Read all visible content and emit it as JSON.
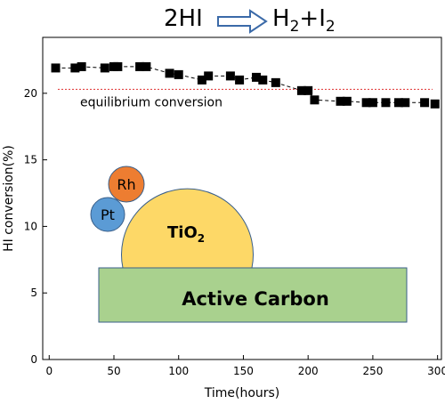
{
  "reaction": {
    "reactant": "2HI",
    "product_h": "H",
    "product_h_sub": "2",
    "plus": "+",
    "product_i": "I",
    "product_i_sub": "2"
  },
  "colors": {
    "tio2": "#fdd867",
    "pt": "#5b9bd5",
    "rh": "#ed7d31",
    "carbon": "#a9d18e",
    "outline": "#3a5f8a",
    "equilibrium_line": "#e03030",
    "marker": "#000000"
  },
  "illustration": {
    "rh_label": "Rh",
    "pt_label": "Pt",
    "tio2_label": "TiO",
    "tio2_sub": "2",
    "carbon_label": "Active Carbon"
  },
  "chart_data": {
    "type": "line",
    "title": "",
    "xlabel": "Time(hours)",
    "ylabel": "HI conversion(%)",
    "xlim": [
      -5,
      303
    ],
    "ylim": [
      0,
      24.2
    ],
    "xticks": [
      0,
      50,
      100,
      150,
      200,
      250,
      300
    ],
    "yticks": [
      0,
      5,
      10,
      15,
      20
    ],
    "grid": false,
    "series": [
      {
        "marker": "square",
        "line_style": "dashed",
        "x": [
          5,
          20,
          25,
          43,
          50,
          53,
          70,
          75,
          93,
          100,
          118,
          123,
          140,
          147,
          160,
          165,
          175,
          195,
          200,
          205,
          225,
          230,
          245,
          250,
          260,
          270,
          275,
          290,
          298
        ],
        "y": [
          21.9,
          21.9,
          22.0,
          21.9,
          22.0,
          22.0,
          22.0,
          22.0,
          21.5,
          21.4,
          21.0,
          21.3,
          21.3,
          21.0,
          21.2,
          21.0,
          20.8,
          20.2,
          20.2,
          19.5,
          19.4,
          19.4,
          19.3,
          19.3,
          19.3,
          19.3,
          19.3,
          19.3,
          19.2
        ]
      }
    ],
    "reference_lines": [
      {
        "y": 20.3,
        "label": "equilibrium conversion",
        "style": "dotted"
      }
    ]
  }
}
